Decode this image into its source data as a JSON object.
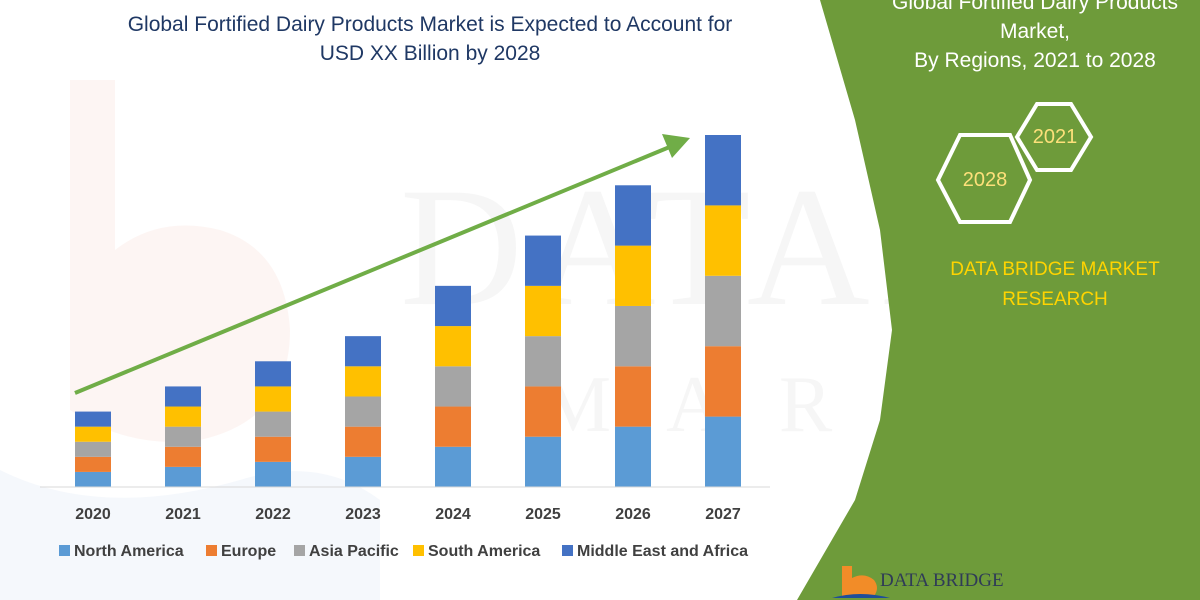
{
  "title_line1": "Global Fortified Dairy Products Market is Expected to Account for",
  "title_line2": "USD XX Billion by 2028",
  "panel": {
    "title_line1": "Global Fortified Dairy Products",
    "title_line2": "Market,",
    "title_line3": "By Regions, 2021 to 2028",
    "hex_big": "2028",
    "hex_small": "2021",
    "brand_line1": "DATA BRIDGE MARKET",
    "brand_line2": "RESEARCH",
    "footer_brand": "DATA BRIDGE",
    "colors": {
      "panel": "#6e9b3a",
      "brand_text": "#ffd400",
      "hex_stroke": "#ffffff"
    }
  },
  "watermark": {
    "line1": "DATABRIDGE",
    "line2": "MARKET"
  },
  "chart_data": {
    "type": "bar",
    "stacked": true,
    "categories": [
      "2020",
      "2021",
      "2022",
      "2023",
      "2024",
      "2025",
      "2026",
      "2027"
    ],
    "series": [
      {
        "name": "North America",
        "color": "#5b9bd5",
        "values": [
          1.5,
          2.0,
          2.5,
          3.0,
          4.0,
          5.0,
          6.0,
          7.0
        ]
      },
      {
        "name": "Europe",
        "color": "#ed7d31",
        "values": [
          1.5,
          2.0,
          2.5,
          3.0,
          4.0,
          5.0,
          6.0,
          7.0
        ]
      },
      {
        "name": "Asia Pacific",
        "color": "#a5a5a5",
        "values": [
          1.5,
          2.0,
          2.5,
          3.0,
          4.0,
          5.0,
          6.0,
          7.0
        ]
      },
      {
        "name": "South America",
        "color": "#ffc000",
        "values": [
          1.5,
          2.0,
          2.5,
          3.0,
          4.0,
          5.0,
          6.0,
          7.0
        ]
      },
      {
        "name": "Middle East and Africa",
        "color": "#4472c4",
        "values": [
          1.5,
          2.0,
          2.5,
          3.0,
          4.0,
          5.0,
          6.0,
          7.0
        ]
      }
    ],
    "ylim": [
      0,
      35
    ],
    "grid": false,
    "legend_position": "bottom",
    "trend_arrow_color": "#70ad47"
  }
}
